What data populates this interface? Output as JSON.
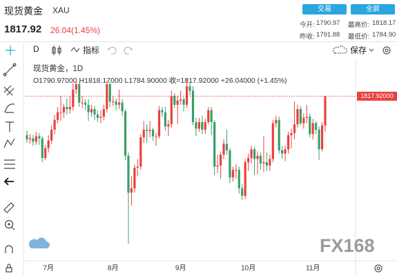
{
  "header": {
    "name": "现货黄金",
    "symbol": "XAU",
    "buttons": [
      "交易",
      "全屏"
    ],
    "price": "1817.92",
    "change": "26.04(1.45%)",
    "stats": [
      {
        "label": "今开:",
        "value": "1790.97"
      },
      {
        "label": "最高价:",
        "value": "1818.17"
      },
      {
        "label": "昨收:",
        "value": "1791.88"
      },
      {
        "label": "最低价:",
        "value": "1784.90"
      }
    ]
  },
  "toolbar": {
    "interval": "D",
    "indicators": "指标",
    "save": "保存"
  },
  "watermark": "FX168",
  "chart_data": {
    "type": "candlestick",
    "title": "现货黄金，1D",
    "ohlc_label": "O1790.97000  H1818.17000  L1784.90000  收=1817.92000  +26.04000 (+1.45%)",
    "last_price_label": "1817.92000",
    "up_color": "#e8413e",
    "down_color": "#3a9e6a",
    "ylim": [
      1668,
      1843
    ],
    "categories": [
      null,
      null,
      null,
      null,
      null,
      null,
      null,
      "7月",
      null,
      null,
      null,
      null,
      null,
      null,
      null,
      null,
      null,
      null,
      null,
      null,
      null,
      null,
      null,
      null,
      null,
      null,
      null,
      null,
      "8月",
      null,
      null,
      null,
      null,
      null,
      null,
      null,
      null,
      null,
      null,
      null,
      null,
      null,
      null,
      null,
      null,
      null,
      null,
      null,
      null,
      null,
      "9月",
      null,
      null,
      null,
      null,
      null,
      null,
      null,
      null,
      null,
      null,
      null,
      null,
      null,
      null,
      null,
      null,
      null,
      null,
      null,
      null,
      null,
      "10月",
      null,
      null,
      null,
      null,
      null,
      null,
      null,
      null,
      null,
      null,
      null,
      null,
      null,
      null,
      null,
      null,
      null,
      null,
      null,
      null,
      "11月",
      null,
      null,
      null,
      null
    ],
    "open": [
      1782,
      1778,
      1779,
      1776,
      1781,
      1779,
      1761,
      1770,
      1777,
      1787,
      1796,
      1803,
      1803,
      1808,
      1806,
      1808,
      1824,
      1829,
      1812,
      1812,
      1810,
      1803,
      1806,
      1801,
      1798,
      1799,
      1806,
      1829,
      1813,
      1813,
      1810,
      1812,
      1804,
      1763,
      1729,
      1733,
      1752,
      1753,
      1780,
      1787,
      1786,
      1787,
      1781,
      1781,
      1805,
      1803,
      1790,
      1792,
      1818,
      1810,
      1814,
      1815,
      1810,
      1827,
      1823,
      1794,
      1788,
      1794,
      1787,
      1794,
      1805,
      1794,
      1753,
      1754,
      1764,
      1774,
      1768,
      1743,
      1750,
      1750,
      1733,
      1726,
      1757,
      1761,
      1769,
      1760,
      1763,
      1756,
      1757,
      1754,
      1760,
      1793,
      1796,
      1768,
      1765,
      1769,
      1782,
      1784,
      1792,
      1806,
      1793,
      1798,
      1799,
      1783,
      1793,
      1787,
      1769,
      1790.97
    ],
    "high": [
      1786,
      1783,
      1782,
      1785,
      1784,
      1781,
      1773,
      1782,
      1791,
      1801,
      1808,
      1818,
      1811,
      1816,
      1818,
      1830,
      1834,
      1831,
      1818,
      1815,
      1815,
      1810,
      1809,
      1805,
      1805,
      1810,
      1832,
      1831,
      1818,
      1816,
      1824,
      1815,
      1806,
      1766,
      1744,
      1755,
      1760,
      1783,
      1795,
      1792,
      1795,
      1789,
      1784,
      1809,
      1808,
      1808,
      1796,
      1823,
      1821,
      1818,
      1823,
      1817,
      1834,
      1830,
      1827,
      1798,
      1798,
      1800,
      1797,
      1808,
      1808,
      1796,
      1764,
      1767,
      1778,
      1787,
      1770,
      1753,
      1755,
      1753,
      1737,
      1760,
      1765,
      1772,
      1771,
      1767,
      1766,
      1781,
      1766,
      1764,
      1796,
      1800,
      1799,
      1772,
      1772,
      1785,
      1788,
      1813,
      1810,
      1809,
      1802,
      1810,
      1802,
      1797,
      1795,
      1790,
      1794,
      1818.17
    ],
    "low": [
      1775,
      1774,
      1772,
      1773,
      1773,
      1757,
      1759,
      1766,
      1774,
      1783,
      1793,
      1795,
      1798,
      1801,
      1802,
      1805,
      1820,
      1808,
      1807,
      1805,
      1795,
      1799,
      1796,
      1794,
      1793,
      1796,
      1803,
      1808,
      1809,
      1805,
      1806,
      1800,
      1759,
      1682,
      1717,
      1729,
      1744,
      1750,
      1775,
      1775,
      1780,
      1777,
      1772,
      1779,
      1799,
      1786,
      1781,
      1789,
      1807,
      1792,
      1810,
      1804,
      1807,
      1819,
      1791,
      1781,
      1785,
      1783,
      1783,
      1792,
      1782,
      1745,
      1747,
      1742,
      1760,
      1764,
      1738,
      1739,
      1742,
      1728,
      1722,
      1723,
      1749,
      1756,
      1745,
      1746,
      1750,
      1748,
      1749,
      1749,
      1757,
      1789,
      1765,
      1760,
      1758,
      1765,
      1770,
      1778,
      1789,
      1791,
      1788,
      1793,
      1780,
      1778,
      1783,
      1759,
      1767,
      1784.9
    ],
    "close": [
      1778,
      1779,
      1776,
      1781,
      1779,
      1761,
      1770,
      1777,
      1787,
      1796,
      1803,
      1803,
      1808,
      1806,
      1808,
      1824,
      1829,
      1812,
      1812,
      1810,
      1803,
      1806,
      1801,
      1798,
      1799,
      1806,
      1829,
      1813,
      1813,
      1810,
      1812,
      1804,
      1763,
      1729,
      1733,
      1752,
      1753,
      1780,
      1787,
      1786,
      1787,
      1781,
      1781,
      1805,
      1803,
      1790,
      1792,
      1818,
      1810,
      1814,
      1815,
      1810,
      1827,
      1823,
      1794,
      1788,
      1794,
      1787,
      1794,
      1805,
      1794,
      1753,
      1754,
      1764,
      1774,
      1768,
      1743,
      1750,
      1750,
      1733,
      1726,
      1757,
      1761,
      1769,
      1760,
      1763,
      1756,
      1757,
      1754,
      1760,
      1793,
      1796,
      1768,
      1765,
      1769,
      1782,
      1784,
      1792,
      1806,
      1793,
      1798,
      1799,
      1783,
      1793,
      1787,
      1769,
      1791,
      1817.92
    ]
  }
}
